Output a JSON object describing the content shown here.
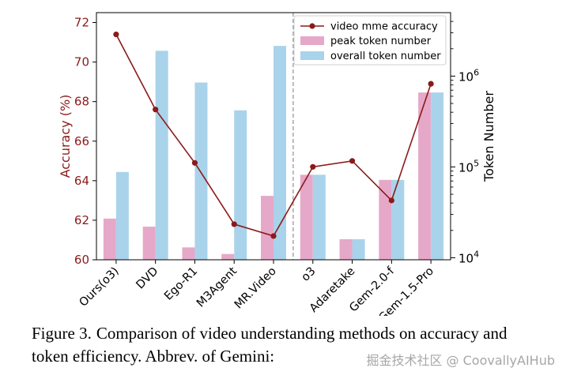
{
  "chart_data": {
    "type": "bar",
    "categories": [
      "Ours(o3)",
      "DVD",
      "Ego-R1",
      "M3Agent",
      "MR.Video",
      "o3",
      "Adaretake",
      "Gem-2.0-f",
      "Gem-1.5-Pro"
    ],
    "series": [
      {
        "name": "video mme accuracy",
        "kind": "line",
        "axis": "left",
        "color": "#8b1a1a",
        "values": [
          71.4,
          67.6,
          64.9,
          61.8,
          61.2,
          64.7,
          65.0,
          63.0,
          68.9
        ]
      },
      {
        "name": "peak token number",
        "kind": "bar",
        "axis": "right",
        "color": "#e6a8c8",
        "values": [
          27000,
          22000,
          13000,
          11000,
          48000,
          82000,
          16000,
          72000,
          660000
        ]
      },
      {
        "name": "overall token number",
        "kind": "bar",
        "axis": "right",
        "color": "#a9d3ea",
        "values": [
          88000,
          1900000,
          850000,
          420000,
          2150000,
          82000,
          16000,
          72000,
          660000
        ]
      }
    ],
    "left_axis": {
      "label": "Accuracy (%)",
      "ylim": [
        60,
        72.5
      ],
      "ticks": [
        "60",
        "62",
        "64",
        "66",
        "68",
        "70",
        "72"
      ],
      "color": "#8b1a1a"
    },
    "right_axis": {
      "label": "Token Number",
      "scale": "log",
      "ylim": [
        9500,
        5000000
      ],
      "tick_values": [
        10000,
        100000,
        1000000
      ],
      "tick_labels": [
        "10",
        "10",
        "10"
      ],
      "tick_exponents": [
        "4",
        "5",
        "6"
      ]
    },
    "divider_after_index": 4,
    "legend_position": "top-right",
    "grid": false
  },
  "caption": {
    "figure_label": "Figure 3.",
    "text": "Comparison of video understanding methods on accuracy and token efficiency. Abbrev. of Gemini:"
  },
  "watermark": "掘金技术社区 @ CoovallyAIHub"
}
